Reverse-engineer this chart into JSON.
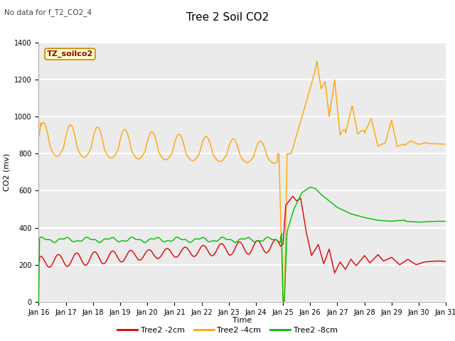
{
  "title": "Tree 2 Soil CO2",
  "no_data_label": "No data for f_T2_CO2_4",
  "ylabel": "CO2 (mv)",
  "xlabel": "Time",
  "annotation_box": "TZ_soilco2",
  "ylim": [
    0,
    1400
  ],
  "xlim": [
    0,
    15
  ],
  "xtick_labels": [
    "Jan 16",
    "Jan 17",
    "Jan 18",
    "Jan 19",
    "Jan 20",
    "Jan 21",
    "Jan 22",
    "Jan 23",
    "Jan 24",
    "Jan 25",
    "Jan 26",
    "Jan 27",
    "Jan 28",
    "Jan 29",
    "Jan 30",
    "Jan 31"
  ],
  "plot_bg_color": "#ebebeb",
  "line_red": "#dd0000",
  "line_orange": "#ffa500",
  "line_green": "#00bb00",
  "legend_labels": [
    "Tree2 -2cm",
    "Tree2 -4cm",
    "Tree2 -8cm"
  ],
  "title_fontsize": 11,
  "tick_fontsize": 7,
  "ylabel_fontsize": 8,
  "xlabel_fontsize": 8
}
